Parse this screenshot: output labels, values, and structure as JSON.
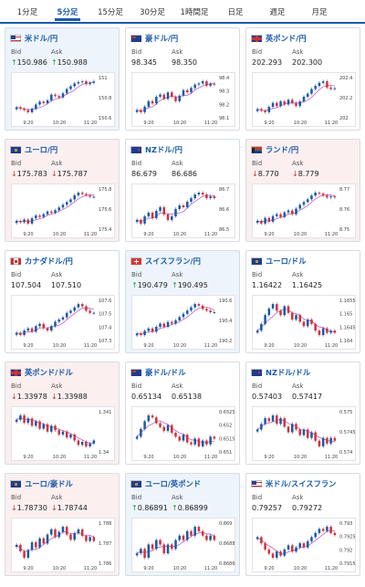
{
  "tabs": [
    {
      "label": "1分足",
      "active": false
    },
    {
      "label": "5分足",
      "active": true
    },
    {
      "label": "15分足",
      "active": false
    },
    {
      "label": "30分足",
      "active": false
    },
    {
      "label": "1時間足",
      "active": false
    },
    {
      "label": "日足",
      "active": false
    },
    {
      "label": "週足",
      "active": false
    },
    {
      "label": "月足",
      "active": false
    }
  ],
  "labels": {
    "bid": "Bid",
    "ask": "Ask"
  },
  "colors": {
    "up_candle": "#1a5aa8",
    "down_candle": "#d0343b",
    "ma": "#c060c8"
  },
  "pairs": [
    {
      "name": "米ドル/円",
      "flag": "us-flag",
      "state": "up",
      "dir": "up",
      "bid": "150.986",
      "ask": "150.988",
      "chart_data": {
        "type": "candlestick",
        "x_ticks": [
          "9:20",
          "10:20",
          "11:20"
        ],
        "y_ticks": [
          "151",
          "150.8",
          "150.6"
        ],
        "candles": [
          150.62,
          150.6,
          150.58,
          150.55,
          150.6,
          150.66,
          150.7,
          150.68,
          150.72,
          150.8,
          150.78,
          150.76,
          150.82,
          150.88,
          150.92,
          150.96,
          150.98,
          150.99,
          150.95,
          150.97,
          150.99
        ]
      }
    },
    {
      "name": "豪ドル/円",
      "flag": "au-flag",
      "state": "",
      "dir": "",
      "bid": "98.345",
      "ask": "98.350",
      "chart_data": {
        "type": "candlestick",
        "x_ticks": [
          "9:20",
          "10:20",
          "11:20"
        ],
        "y_ticks": [
          "98.4",
          "98.3",
          "98.2",
          "98.1"
        ],
        "candles": [
          98.12,
          98.1,
          98.15,
          98.2,
          98.18,
          98.24,
          98.26,
          98.22,
          98.28,
          98.24,
          98.2,
          98.25,
          98.3,
          98.28,
          98.32,
          98.35,
          98.36,
          98.38,
          98.34,
          98.36,
          98.35
        ]
      }
    },
    {
      "name": "英ポンド/円",
      "flag": "gb-flag",
      "state": "",
      "dir": "",
      "bid": "202.293",
      "ask": "202.300",
      "chart_data": {
        "type": "candlestick",
        "x_ticks": [
          "9:20",
          "10:20",
          "11:20"
        ],
        "y_ticks": [
          "202.4",
          "202.2",
          "202"
        ],
        "candles": [
          202.02,
          202.0,
          201.98,
          202.05,
          202.1,
          202.06,
          202.12,
          202.08,
          202.14,
          202.1,
          202.06,
          202.12,
          202.18,
          202.22,
          202.28,
          202.32,
          202.36,
          202.38,
          202.3,
          202.28,
          202.29
        ]
      }
    },
    {
      "name": "ユーロ/円",
      "flag": "eu-flag",
      "state": "down",
      "dir": "dn",
      "bid": "175.783",
      "ask": "175.787",
      "chart_data": {
        "type": "candlestick",
        "x_ticks": [
          "9:20",
          "10:20",
          "11:20"
        ],
        "y_ticks": [
          "175.8",
          "175.6",
          "175.4"
        ],
        "candles": [
          175.42,
          175.4,
          175.44,
          175.38,
          175.46,
          175.5,
          175.48,
          175.52,
          175.56,
          175.54,
          175.58,
          175.62,
          175.66,
          175.7,
          175.74,
          175.8,
          175.84,
          175.82,
          175.8,
          175.78,
          175.78
        ]
      }
    },
    {
      "name": "NZドル/円",
      "flag": "nz-flag",
      "state": "",
      "dir": "",
      "bid": "86.679",
      "ask": "86.686",
      "chart_data": {
        "type": "candlestick",
        "x_ticks": [
          "9:20",
          "10:20",
          "11:20"
        ],
        "y_ticks": [
          "86.7",
          "86.6",
          "86.5"
        ],
        "candles": [
          86.56,
          86.54,
          86.58,
          86.6,
          86.57,
          86.61,
          86.63,
          86.59,
          86.56,
          86.58,
          86.62,
          86.64,
          86.63,
          86.66,
          86.68,
          86.7,
          86.71,
          86.7,
          86.68,
          86.69,
          86.68
        ]
      }
    },
    {
      "name": "ランド/円",
      "flag": "za-flag",
      "state": "down",
      "dir": "dn",
      "bid": "8.770",
      "ask": "8.779",
      "chart_data": {
        "type": "candlestick",
        "x_ticks": [
          "9:20",
          "10:20",
          "11:20"
        ],
        "y_ticks": [
          "8.77",
          "8.76",
          "8.75"
        ],
        "candles": [
          8.745,
          8.742,
          8.748,
          8.744,
          8.75,
          8.752,
          8.749,
          8.754,
          8.756,
          8.752,
          8.758,
          8.762,
          8.765,
          8.768,
          8.772,
          8.775,
          8.774,
          8.772,
          8.77,
          8.771,
          8.77
        ]
      }
    },
    {
      "name": "カナダドル/円",
      "flag": "ca-flag",
      "state": "",
      "dir": "",
      "bid": "107.504",
      "ask": "107.510",
      "chart_data": {
        "type": "candlestick",
        "x_ticks": [
          "9:20",
          "10:20",
          "11:20"
        ],
        "y_ticks": [
          "107.6",
          "107.5",
          "107.4",
          "107.3"
        ],
        "candles": [
          107.32,
          107.3,
          107.34,
          107.36,
          107.33,
          107.38,
          107.4,
          107.36,
          107.34,
          107.38,
          107.42,
          107.44,
          107.46,
          107.5,
          107.52,
          107.55,
          107.58,
          107.56,
          107.52,
          107.5,
          107.5
        ]
      }
    },
    {
      "name": "スイスフラン/円",
      "flag": "ch-flag",
      "state": "up",
      "dir": "up",
      "bid": "190.479",
      "ask": "190.495",
      "chart_data": {
        "type": "candlestick",
        "x_ticks": [
          "9:20",
          "10:20",
          "11:20"
        ],
        "y_ticks": [
          "190.6",
          "190.4",
          "190.2"
        ],
        "candles": [
          190.22,
          190.2,
          190.25,
          190.28,
          190.24,
          190.3,
          190.34,
          190.3,
          190.36,
          190.34,
          190.38,
          190.42,
          190.46,
          190.5,
          190.54,
          190.58,
          190.56,
          190.52,
          190.5,
          190.48,
          190.48
        ]
      }
    },
    {
      "name": "ユーロ/ドル",
      "flag": "eu-flag",
      "state": "",
      "dir": "",
      "bid": "1.16422",
      "ask": "1.16425",
      "chart_data": {
        "type": "candlestick",
        "x_ticks": [
          "9:20",
          "10:20",
          "11:20"
        ],
        "y_ticks": [
          "1.1655",
          "1.165",
          "1.1645",
          "1.164"
        ],
        "candles": [
          1.1643,
          1.1646,
          1.165,
          1.1653,
          1.1655,
          1.1652,
          1.165,
          1.1654,
          1.1651,
          1.1648,
          1.165,
          1.1647,
          1.1645,
          1.1648,
          1.1646,
          1.1643,
          1.1641,
          1.1644,
          1.1642,
          1.1643,
          1.1642
        ]
      }
    },
    {
      "name": "英ポンド/ドル",
      "flag": "gb-flag",
      "state": "down",
      "dir": "dn",
      "bid": "1.33978",
      "ask": "1.33988",
      "chart_data": {
        "type": "candlestick",
        "x_ticks": [
          "9:20",
          "10:20",
          "11:20"
        ],
        "y_ticks": [
          "1.341",
          "1.34"
        ],
        "candles": [
          1.3412,
          1.3415,
          1.341,
          1.3413,
          1.3408,
          1.3411,
          1.3406,
          1.3409,
          1.3404,
          1.3408,
          1.3405,
          1.3402,
          1.3404,
          1.34,
          1.3402,
          1.3398,
          1.3395,
          1.3397,
          1.3394,
          1.3396,
          1.3398
        ]
      }
    },
    {
      "name": "豪ドル/ドル",
      "flag": "au-flag",
      "state": "",
      "dir": "",
      "bid": "0.65134",
      "ask": "0.65138",
      "chart_data": {
        "type": "candlestick",
        "x_ticks": [
          "9:20",
          "10:20",
          "11:20"
        ],
        "y_ticks": [
          "0.6525",
          "0.652",
          "0.6515",
          "0.651"
        ],
        "candles": [
          0.6514,
          0.6518,
          0.6522,
          0.6525,
          0.6524,
          0.6521,
          0.6519,
          0.6517,
          0.652,
          0.6516,
          0.6514,
          0.6512,
          0.6515,
          0.6511,
          0.651,
          0.6513,
          0.6509,
          0.6512,
          0.651,
          0.6514,
          0.6513
        ]
      }
    },
    {
      "name": "NZドル/ドル",
      "flag": "nz-flag",
      "state": "",
      "dir": "",
      "bid": "0.57403",
      "ask": "0.57417",
      "chart_data": {
        "type": "candlestick",
        "x_ticks": [
          "9:20",
          "10:20",
          "11:20"
        ],
        "y_ticks": [
          "0.575",
          "0.5745",
          "0.574"
        ],
        "candles": [
          0.5744,
          0.5746,
          0.5748,
          0.5747,
          0.5749,
          0.5746,
          0.5748,
          0.5745,
          0.5743,
          0.5746,
          0.5744,
          0.5742,
          0.5744,
          0.5741,
          0.5743,
          0.574,
          0.5738,
          0.5741,
          0.5739,
          0.5741,
          0.574
        ]
      }
    },
    {
      "name": "ユーロ/豪ドル",
      "flag": "eu-flag",
      "state": "down",
      "dir": "dn",
      "bid": "1.78730",
      "ask": "1.78744",
      "chart_data": {
        "type": "candlestick",
        "x_ticks": [
          "9:20",
          "10:20",
          "11:20"
        ],
        "y_ticks": [
          "1.788",
          "1.787",
          "1.786"
        ],
        "candles": [
          1.787,
          1.7865,
          1.786,
          1.7866,
          1.7872,
          1.7868,
          1.7875,
          1.7871,
          1.7878,
          1.7882,
          1.7876,
          1.788,
          1.7884,
          1.7878,
          1.7874,
          1.7879,
          1.7882,
          1.7877,
          1.7873,
          1.7876,
          1.7873
        ]
      }
    },
    {
      "name": "ユーロ/英ポンド",
      "flag": "eu-flag",
      "state": "up",
      "dir": "up",
      "bid": "0.86891",
      "ask": "0.86899",
      "chart_data": {
        "type": "candlestick",
        "x_ticks": [
          "9:20",
          "10:20",
          "11:20"
        ],
        "y_ticks": [
          "0.869",
          "0.8688",
          "0.8686"
        ],
        "candles": [
          0.8686,
          0.8687,
          0.8685,
          0.8688,
          0.8687,
          0.8689,
          0.8688,
          0.8686,
          0.8688,
          0.8687,
          0.8689,
          0.869,
          0.8689,
          0.8691,
          0.869,
          0.8692,
          0.8691,
          0.869,
          0.8689,
          0.869,
          0.8689
        ]
      }
    },
    {
      "name": "米ドル/スイスフラン",
      "flag": "us-flag",
      "state": "",
      "dir": "",
      "bid": "0.79257",
      "ask": "0.79272",
      "chart_data": {
        "type": "candlestick",
        "x_ticks": [
          "9:20",
          "10:20",
          "11:20"
        ],
        "y_ticks": [
          "0.793",
          "0.7925",
          "0.792",
          "0.7915"
        ],
        "candles": [
          0.7925,
          0.7922,
          0.7919,
          0.7917,
          0.7915,
          0.7918,
          0.7916,
          0.7919,
          0.7921,
          0.7918,
          0.792,
          0.7922,
          0.792,
          0.7923,
          0.7925,
          0.7927,
          0.7929,
          0.7928,
          0.793,
          0.7927,
          0.7926
        ]
      }
    }
  ]
}
